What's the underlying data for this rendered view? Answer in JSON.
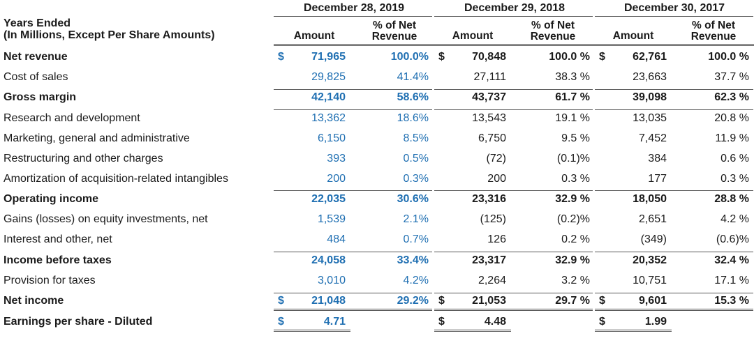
{
  "header": {
    "label_line1": "Years Ended",
    "label_line2": "(In Millions, Except Per Share Amounts)",
    "periods": [
      "December 28, 2019",
      "December 29, 2018",
      "December 30, 2017"
    ],
    "amount_label": "Amount",
    "pct_line1": "% of Net",
    "pct_line2": "Revenue"
  },
  "currency_symbol": "$",
  "rows": [
    {
      "label": "Net revenue",
      "bold": true,
      "dollar": true,
      "a2019": "71,965",
      "p2019": "100.0%",
      "a2018": "70,848",
      "p2018": "100.0 %",
      "a2017": "62,761",
      "p2017": "100.0 %"
    },
    {
      "label": "Cost of sales",
      "bold": false,
      "dollar": false,
      "a2019": "29,825",
      "p2019": "41.4%",
      "a2018": "27,111",
      "p2018": "38.3 %",
      "a2017": "23,663",
      "p2017": "37.7 %"
    },
    {
      "label": "Gross margin",
      "bold": true,
      "dollar": false,
      "a2019": "42,140",
      "p2019": "58.6%",
      "a2018": "43,737",
      "p2018": "61.7 %",
      "a2017": "39,098",
      "p2017": "62.3 %"
    },
    {
      "label": "Research and development",
      "bold": false,
      "dollar": false,
      "a2019": "13,362",
      "p2019": "18.6%",
      "a2018": "13,543",
      "p2018": "19.1 %",
      "a2017": "13,035",
      "p2017": "20.8 %"
    },
    {
      "label": "Marketing, general and administrative",
      "bold": false,
      "dollar": false,
      "a2019": "6,150",
      "p2019": "8.5%",
      "a2018": "6,750",
      "p2018": "9.5 %",
      "a2017": "7,452",
      "p2017": "11.9 %"
    },
    {
      "label": "Restructuring and other charges",
      "bold": false,
      "dollar": false,
      "a2019": "393",
      "p2019": "0.5%",
      "a2018": "(72)",
      "p2018": "(0.1)%",
      "a2017": "384",
      "p2017": "0.6 %"
    },
    {
      "label": "Amortization of acquisition-related intangibles",
      "bold": false,
      "dollar": false,
      "a2019": "200",
      "p2019": "0.3%",
      "a2018": "200",
      "p2018": "0.3 %",
      "a2017": "177",
      "p2017": "0.3 %"
    },
    {
      "label": "Operating income",
      "bold": true,
      "dollar": false,
      "a2019": "22,035",
      "p2019": "30.6%",
      "a2018": "23,316",
      "p2018": "32.9 %",
      "a2017": "18,050",
      "p2017": "28.8 %"
    },
    {
      "label": "Gains (losses) on equity investments, net",
      "bold": false,
      "dollar": false,
      "a2019": "1,539",
      "p2019": "2.1%",
      "a2018": "(125)",
      "p2018": "(0.2)%",
      "a2017": "2,651",
      "p2017": "4.2 %"
    },
    {
      "label": "Interest and other, net",
      "bold": false,
      "dollar": false,
      "a2019": "484",
      "p2019": "0.7%",
      "a2018": "126",
      "p2018": "0.2 %",
      "a2017": "(349)",
      "p2017": "(0.6)%"
    },
    {
      "label": "Income before taxes",
      "bold": true,
      "dollar": false,
      "a2019": "24,058",
      "p2019": "33.4%",
      "a2018": "23,317",
      "p2018": "32.9 %",
      "a2017": "20,352",
      "p2017": "32.4 %"
    },
    {
      "label": "Provision for taxes",
      "bold": false,
      "dollar": false,
      "a2019": "3,010",
      "p2019": "4.2%",
      "a2018": "2,264",
      "p2018": "3.2 %",
      "a2017": "10,751",
      "p2017": "17.1 %"
    },
    {
      "label": "Net income",
      "bold": true,
      "dollar": true,
      "a2019": "21,048",
      "p2019": "29.2%",
      "a2018": "21,053",
      "p2018": "29.7 %",
      "a2017": "9,601",
      "p2017": "15.3 %"
    },
    {
      "label": "Earnings per share - Diluted",
      "bold": true,
      "dollar": true,
      "a2019": "4.71",
      "p2019": "",
      "a2018": "4.48",
      "p2018": "",
      "a2017": "1.99",
      "p2017": ""
    }
  ],
  "colors": {
    "highlight_2019": "#1f6fb2",
    "text": "#1a1a1a",
    "rule": "#555555"
  }
}
